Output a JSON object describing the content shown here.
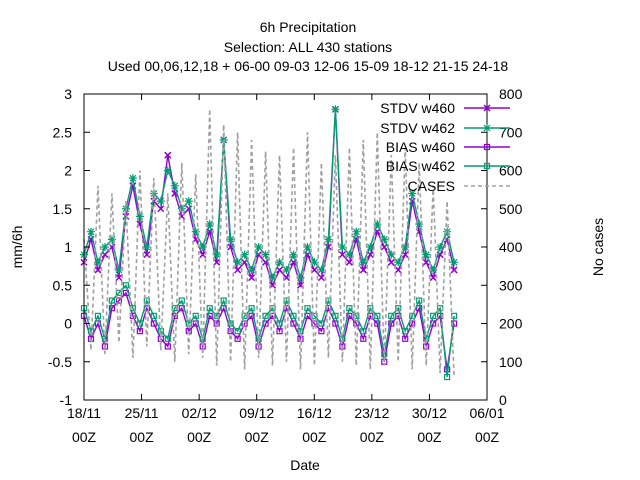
{
  "chart_data": {
    "type": "line",
    "title_lines": [
      "6h Precipitation",
      "Selection: ALL     430 stations",
      "Used  00,06,12,18  + 06-00  09-03  12-06  15-09  18-12  21-15  24-18"
    ],
    "xlabel": "Date",
    "ylabel": "mm/6h",
    "y2label": "No cases",
    "ylim": [
      -1,
      3
    ],
    "y2lim": [
      0,
      800
    ],
    "yticks": [
      "-1",
      "-0.5",
      "0",
      "0.5",
      "1",
      "1.5",
      "2",
      "2.5",
      "3"
    ],
    "y2ticks": [
      "0",
      "100",
      "200",
      "300",
      "400",
      "500",
      "600",
      "700",
      "800"
    ],
    "xticks": [
      {
        "date": "18/11",
        "hour": "00Z"
      },
      {
        "date": "25/11",
        "hour": "00Z"
      },
      {
        "date": "02/12",
        "hour": "00Z"
      },
      {
        "date": "09/12",
        "hour": "00Z"
      },
      {
        "date": "16/12",
        "hour": "00Z"
      },
      {
        "date": "23/12",
        "hour": "00Z"
      },
      {
        "date": "30/12",
        "hour": "00Z"
      },
      {
        "date": "06/01",
        "hour": "00Z"
      }
    ],
    "grid": false,
    "legend_position": "top-right",
    "series": [
      {
        "name": "STDV w460",
        "color": "#9400d3",
        "marker": "x",
        "axis": "y1",
        "values": [
          0.8,
          1.1,
          0.7,
          0.9,
          1.0,
          0.6,
          1.4,
          1.8,
          1.3,
          0.9,
          1.6,
          1.5,
          2.2,
          1.7,
          1.4,
          1.5,
          1.1,
          0.9,
          1.2,
          0.8,
          2.4,
          1.0,
          0.7,
          0.8,
          0.6,
          0.9,
          0.8,
          0.5,
          0.7,
          0.6,
          0.8,
          0.5,
          0.9,
          0.7,
          0.6,
          1.0,
          2.8,
          0.9,
          0.8,
          1.1,
          0.7,
          0.9,
          1.2,
          1.0,
          0.8,
          0.7,
          0.9,
          1.6,
          1.2,
          0.8,
          0.6,
          0.9,
          1.1,
          0.7
        ]
      },
      {
        "name": "STDV w462",
        "color": "#009e73",
        "marker": "star",
        "axis": "y1",
        "values": [
          0.9,
          1.2,
          0.8,
          1.0,
          1.1,
          0.7,
          1.5,
          1.9,
          1.4,
          1.0,
          1.7,
          1.6,
          2.0,
          1.8,
          1.5,
          1.6,
          1.2,
          1.0,
          1.3,
          0.9,
          2.4,
          1.1,
          0.8,
          0.9,
          0.7,
          1.0,
          0.9,
          0.6,
          0.8,
          0.7,
          0.9,
          0.6,
          1.0,
          0.8,
          0.7,
          1.1,
          2.8,
          1.0,
          0.9,
          1.2,
          0.8,
          1.0,
          1.3,
          1.1,
          0.9,
          0.8,
          1.0,
          1.7,
          1.3,
          0.9,
          0.7,
          1.0,
          1.2,
          0.8
        ]
      },
      {
        "name": "BIAS w460",
        "color": "#9400d3",
        "marker": "square",
        "axis": "y1",
        "values": [
          0.1,
          -0.2,
          0.0,
          -0.3,
          0.2,
          0.3,
          0.4,
          0.1,
          -0.1,
          0.2,
          0.0,
          -0.2,
          -0.3,
          0.1,
          0.2,
          -0.1,
          0.0,
          -0.3,
          0.1,
          0.0,
          0.2,
          -0.1,
          -0.2,
          0.0,
          0.1,
          -0.3,
          0.0,
          0.1,
          -0.1,
          0.2,
          0.0,
          -0.2,
          0.1,
          0.0,
          -0.1,
          0.2,
          0.0,
          -0.3,
          0.1,
          0.0,
          -0.2,
          0.1,
          0.0,
          -0.5,
          0.0,
          0.1,
          -0.2,
          0.0,
          0.2,
          -0.3,
          0.0,
          0.1,
          -0.6,
          0.0
        ]
      },
      {
        "name": "BIAS w462",
        "color": "#009e73",
        "marker": "square",
        "axis": "y1",
        "values": [
          0.2,
          -0.1,
          0.1,
          -0.2,
          0.3,
          0.4,
          0.5,
          0.2,
          0.0,
          0.3,
          0.1,
          -0.1,
          -0.2,
          0.2,
          0.3,
          0.0,
          0.1,
          -0.2,
          0.2,
          0.1,
          0.3,
          0.0,
          -0.1,
          0.1,
          0.2,
          -0.2,
          0.1,
          0.2,
          0.0,
          0.3,
          0.1,
          -0.1,
          0.2,
          0.1,
          0.0,
          0.3,
          0.1,
          -0.2,
          0.2,
          0.1,
          -0.1,
          0.2,
          0.1,
          -0.4,
          0.1,
          0.2,
          -0.1,
          0.1,
          0.3,
          -0.2,
          0.1,
          0.2,
          -0.7,
          0.1
        ]
      },
      {
        "name": "CASES",
        "color": "#a0a0a0",
        "marker": "none",
        "dash": true,
        "axis": "y2",
        "values": [
          420,
          130,
          560,
          120,
          540,
          150,
          520,
          110,
          600,
          140,
          580,
          130,
          540,
          100,
          620,
          120,
          590,
          110,
          760,
          90,
          720,
          100,
          700,
          80,
          680,
          110,
          650,
          90,
          640,
          100,
          660,
          80,
          700,
          90,
          620,
          110,
          640,
          100,
          660,
          90,
          680,
          80,
          700,
          90,
          640,
          100,
          660,
          80,
          620,
          90,
          560,
          70,
          520,
          60
        ]
      }
    ]
  }
}
